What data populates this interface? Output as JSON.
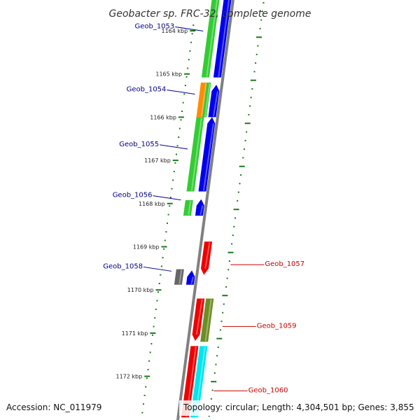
{
  "title": "Geobacter sp. FRC-32, complete genome",
  "footer": {
    "accession": "Accession: NC_011979",
    "topology": "Topology: circular; Length: 4,304,501 bp; Genes: 3,855"
  },
  "colors": {
    "backbone": "#808080",
    "tick": "#1a7a1a",
    "label_left": "#00008b",
    "label_right": "#cc0000",
    "green": "#33cc33",
    "blue": "#0000ee",
    "orange": "#ff8c00",
    "red": "#ee0000",
    "olive": "#6b8e23",
    "gray": "#666666",
    "cyan": "#00e5ee"
  },
  "kbp_markers": [
    {
      "label": "1164 kbp",
      "pos": 1164
    },
    {
      "label": "1165 kbp",
      "pos": 1165
    },
    {
      "label": "1166 kbp",
      "pos": 1166
    },
    {
      "label": "1167 kbp",
      "pos": 1167
    },
    {
      "label": "1168 kbp",
      "pos": 1168
    },
    {
      "label": "1169 kbp",
      "pos": 1169
    },
    {
      "label": "1170 kbp",
      "pos": 1170
    },
    {
      "label": "1171 kbp",
      "pos": 1171
    },
    {
      "label": "1172 kbp",
      "pos": 1172
    }
  ],
  "genes": [
    {
      "id": "geob-1053",
      "label": "Geob_1053",
      "side": "left",
      "label_pos": 1163.99,
      "bars": [
        {
          "track": 1,
          "start": 1163.2,
          "end": 1165.08,
          "color": "green",
          "arrow": "none"
        },
        {
          "track": 2,
          "start": 1163.2,
          "end": 1165.08,
          "color": "blue",
          "arrow": "none"
        }
      ]
    },
    {
      "id": "geob-1054",
      "label": "Geob_1054",
      "side": "left",
      "label_pos": 1165.45,
      "bars": [
        {
          "track": 1,
          "start": 1165.2,
          "end": 1166.0,
          "color": "orange",
          "arrow": "none"
        },
        {
          "track": 1.6,
          "start": 1165.2,
          "end": 1166.0,
          "color": "green",
          "arrow": "none"
        },
        {
          "track": 2,
          "start": 1165.25,
          "end": 1166.0,
          "color": "blue",
          "arrow": "up"
        }
      ]
    },
    {
      "id": "geob-1055",
      "label": "Geob_1055",
      "side": "left",
      "label_pos": 1166.72,
      "bars": [
        {
          "track": 1,
          "start": 1166.0,
          "end": 1167.72,
          "color": "green",
          "arrow": "none"
        },
        {
          "track": 2,
          "start": 1166.0,
          "end": 1167.72,
          "color": "blue",
          "arrow": "up"
        }
      ]
    },
    {
      "id": "geob-1056",
      "label": "Geob_1056",
      "side": "left",
      "label_pos": 1167.9,
      "bars": [
        {
          "track": 1,
          "start": 1167.92,
          "end": 1168.28,
          "color": "green",
          "arrow": "none"
        },
        {
          "track": 2,
          "start": 1167.9,
          "end": 1168.28,
          "color": "blue",
          "arrow": "up"
        }
      ]
    },
    {
      "id": "geob-1057",
      "label": "Geob_1057",
      "side": "right",
      "label_pos": 1169.4,
      "bars": [
        {
          "track": 3,
          "start": 1168.88,
          "end": 1169.65,
          "color": "red",
          "arrow": "down"
        }
      ]
    },
    {
      "id": "geob-1058",
      "label": "Geob_1058",
      "side": "left",
      "label_pos": 1169.55,
      "bars": [
        {
          "track": 1,
          "start": 1169.52,
          "end": 1169.88,
          "color": "gray",
          "arrow": "none"
        },
        {
          "track": 2,
          "start": 1169.55,
          "end": 1169.88,
          "color": "blue",
          "arrow": "up"
        }
      ]
    },
    {
      "id": "geob-1059",
      "label": "Geob_1059",
      "side": "right",
      "label_pos": 1170.83,
      "bars": [
        {
          "track": 3,
          "start": 1170.2,
          "end": 1171.18,
          "color": "red",
          "arrow": "down"
        },
        {
          "track": 4,
          "start": 1170.2,
          "end": 1171.2,
          "color": "olive",
          "arrow": "none"
        }
      ]
    },
    {
      "id": "geob-1060",
      "label": "Geob_1060",
      "side": "right",
      "label_pos": 1172.32,
      "bars": [
        {
          "track": 3,
          "start": 1171.3,
          "end": 1172.95,
          "color": "red",
          "arrow": "none"
        },
        {
          "track": 4,
          "start": 1171.3,
          "end": 1172.95,
          "color": "cyan",
          "arrow": "none"
        }
      ]
    }
  ]
}
